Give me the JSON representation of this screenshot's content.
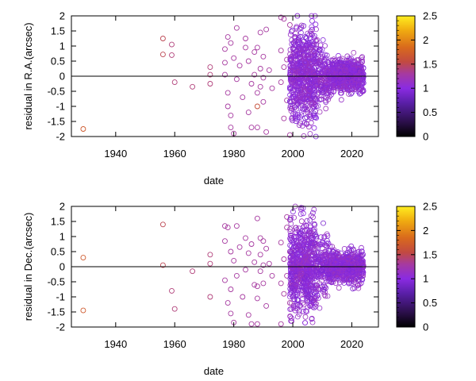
{
  "chart_data": [
    {
      "type": "scatter",
      "xlabel": "date",
      "ylabel": "residual in R.A.(arcsec)",
      "xlim": [
        1925,
        2029
      ],
      "ylim": [
        -2,
        2
      ],
      "x_ticks": [
        "1940",
        "1960",
        "1980",
        "2000",
        "2020"
      ],
      "y_ticks": [
        "2",
        "1.5",
        "1",
        "0.5",
        "0",
        "-0.5",
        "-1",
        "-1.5",
        "-2"
      ],
      "colorbar": {
        "range": [
          0,
          2.5
        ],
        "ticks": [
          "2.5",
          "2",
          "1.5",
          "1",
          "0.5",
          "0"
        ],
        "palette": "gnuplot"
      },
      "zero_line": true,
      "marker": "open-circle",
      "points": [
        [
          1929,
          -1.75,
          1.7
        ],
        [
          1956,
          1.25,
          1.5
        ],
        [
          1956,
          0.72,
          1.5
        ],
        [
          1959,
          1.05,
          1.4
        ],
        [
          1959,
          0.7,
          1.4
        ],
        [
          1960,
          -0.2,
          1.4
        ],
        [
          1966,
          -0.35,
          1.4
        ],
        [
          1972,
          0.3,
          1.4
        ],
        [
          1972,
          0.05,
          1.4
        ],
        [
          1972,
          -0.25,
          1.4
        ],
        [
          1977,
          0.9,
          1.3
        ],
        [
          1977,
          0.45,
          1.3
        ],
        [
          1977,
          0.05,
          1.3
        ],
        [
          1978,
          -0.55,
          1.3
        ],
        [
          1978,
          -1.0,
          1.3
        ],
        [
          1978,
          1.3,
          1.3
        ],
        [
          1979,
          -1.3,
          1.3
        ],
        [
          1979,
          1.1,
          1.3
        ],
        [
          1979,
          -1.7,
          1.3
        ],
        [
          1980,
          -1.9,
          1.3
        ],
        [
          1980,
          0.6,
          1.3
        ],
        [
          1981,
          1.6,
          1.3
        ],
        [
          1981,
          -0.1,
          1.3
        ],
        [
          1982,
          0.35,
          1.3
        ],
        [
          1983,
          -0.7,
          1.3
        ],
        [
          1984,
          1.25,
          1.3
        ],
        [
          1984,
          0.95,
          1.3
        ],
        [
          1985,
          -1.2,
          1.3
        ],
        [
          1985,
          0.5,
          1.3
        ],
        [
          1986,
          -0.25,
          1.3
        ],
        [
          1986,
          -1.7,
          1.3
        ],
        [
          1987,
          0.8,
          1.3
        ],
        [
          1987,
          0.05,
          1.3
        ],
        [
          1988,
          -0.55,
          1.3
        ],
        [
          1988,
          -1.0,
          1.6
        ],
        [
          1988,
          0.95,
          1.3
        ],
        [
          1988,
          -1.7,
          1.3
        ],
        [
          1989,
          1.45,
          1.3
        ],
        [
          1989,
          0.25,
          1.3
        ],
        [
          1989,
          -0.35,
          1.3
        ],
        [
          1990,
          0.65,
          1.3
        ],
        [
          1990,
          -0.05,
          1.3
        ],
        [
          1990,
          -0.85,
          1.3
        ],
        [
          1991,
          -1.85,
          1.3
        ],
        [
          1991,
          1.55,
          1.3
        ],
        [
          1992,
          0.2,
          1.3
        ],
        [
          1993,
          -0.4,
          1.3
        ],
        [
          1996,
          0.85,
          1.3
        ],
        [
          1996,
          1.95,
          1.3
        ],
        [
          1996,
          -0.2,
          1.3
        ],
        [
          1997,
          0.3,
          1.3
        ],
        [
          1997,
          1.9,
          1.3
        ],
        [
          1997,
          -1.4,
          1.3
        ],
        [
          1998,
          0.55,
          1.3
        ],
        [
          1998,
          -0.8,
          1.3
        ],
        [
          1999,
          1.7,
          1.3
        ],
        [
          1999,
          0.05,
          1.3
        ],
        [
          1999,
          -1.95,
          1.3
        ]
      ],
      "cluster_note": ""
    },
    {
      "type": "scatter",
      "xlabel": "date",
      "ylabel": "residual in Dec.(arcsec)",
      "xlim": [
        1925,
        2029
      ],
      "ylim": [
        -2,
        2
      ],
      "x_ticks": [
        "1940",
        "1960",
        "1980",
        "2000",
        "2020"
      ],
      "y_ticks": [
        "2",
        "1.5",
        "1",
        "0.5",
        "0",
        "-0.5",
        "-1",
        "-1.5",
        "-2"
      ],
      "colorbar": {
        "range": [
          0,
          2.5
        ],
        "ticks": [
          "2.5",
          "2",
          "1.5",
          "1",
          "0.5",
          "0"
        ],
        "palette": "gnuplot"
      },
      "zero_line": true,
      "marker": "open-circle",
      "points": [
        [
          1929,
          0.3,
          1.7
        ],
        [
          1929,
          -1.45,
          1.7
        ],
        [
          1956,
          1.4,
          1.5
        ],
        [
          1956,
          0.05,
          1.5
        ],
        [
          1959,
          -0.8,
          1.4
        ],
        [
          1960,
          -1.4,
          1.4
        ],
        [
          1966,
          -0.15,
          1.4
        ],
        [
          1972,
          0.4,
          1.4
        ],
        [
          1972,
          0.1,
          1.4
        ],
        [
          1972,
          -1.0,
          1.4
        ],
        [
          1977,
          1.35,
          1.3
        ],
        [
          1977,
          0.85,
          1.3
        ],
        [
          1977,
          -0.45,
          1.3
        ],
        [
          1978,
          -1.2,
          1.3
        ],
        [
          1978,
          1.3,
          1.3
        ],
        [
          1979,
          0.5,
          1.3
        ],
        [
          1979,
          -0.75,
          1.3
        ],
        [
          1979,
          -1.55,
          1.3
        ],
        [
          1980,
          -1.85,
          1.3
        ],
        [
          1980,
          0.2,
          1.3
        ],
        [
          1981,
          1.35,
          1.3
        ],
        [
          1981,
          -0.3,
          1.3
        ],
        [
          1982,
          0.65,
          1.3
        ],
        [
          1983,
          -1.0,
          1.3
        ],
        [
          1984,
          0.95,
          1.3
        ],
        [
          1984,
          -0.1,
          1.3
        ],
        [
          1985,
          0.45,
          1.3
        ],
        [
          1985,
          -1.6,
          1.3
        ],
        [
          1986,
          0.75,
          1.3
        ],
        [
          1986,
          -1.9,
          1.3
        ],
        [
          1987,
          0.15,
          1.3
        ],
        [
          1987,
          -0.6,
          1.3
        ],
        [
          1988,
          1.6,
          1.3
        ],
        [
          1988,
          -0.65,
          1.3
        ],
        [
          1988,
          -1.05,
          1.3
        ],
        [
          1988,
          -1.9,
          1.3
        ],
        [
          1989,
          0.95,
          1.3
        ],
        [
          1989,
          0.4,
          1.3
        ],
        [
          1989,
          -0.15,
          1.3
        ],
        [
          1990,
          0.85,
          1.3
        ],
        [
          1990,
          0.05,
          1.3
        ],
        [
          1990,
          -0.55,
          1.3
        ],
        [
          1991,
          -1.3,
          1.3
        ],
        [
          1991,
          0.6,
          1.3
        ],
        [
          1992,
          0.1,
          1.3
        ],
        [
          1993,
          -0.3,
          1.3
        ],
        [
          1996,
          0.8,
          1.3
        ],
        [
          1996,
          -0.55,
          1.3
        ],
        [
          1996,
          -1.9,
          1.3
        ],
        [
          1997,
          0.25,
          1.3
        ],
        [
          1997,
          -0.9,
          1.3
        ],
        [
          1998,
          1.3,
          1.3
        ],
        [
          1998,
          1.65,
          1.3
        ],
        [
          1998,
          -0.3,
          1.3
        ],
        [
          1999,
          0.5,
          1.3
        ],
        [
          1999,
          -1.2,
          1.3
        ],
        [
          1999,
          1.55,
          1.3
        ]
      ],
      "cluster_note": ""
    }
  ]
}
